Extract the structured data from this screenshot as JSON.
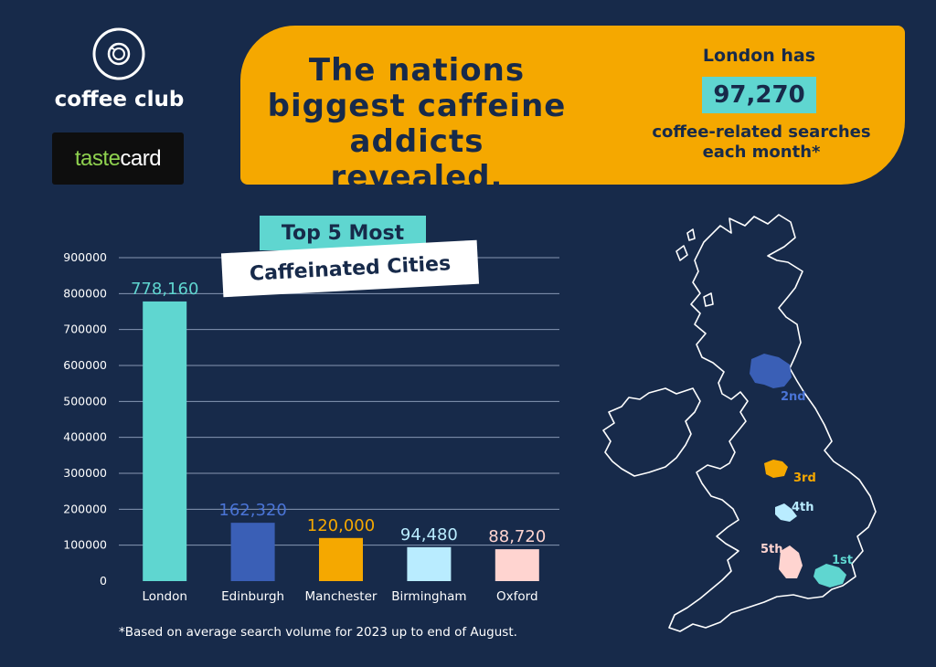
{
  "brand": {
    "name": "coffee club",
    "partner_taste": "taste",
    "partner_card": "card"
  },
  "banner": {
    "title": "The nations biggest caffeine addicts revealed.",
    "stat_lead": "London has",
    "stat_value": "97,270",
    "stat_tail": "coffee-related searches each month*"
  },
  "chart_title": {
    "line1": "Top 5 Most",
    "line2": "Caffeinated Cities"
  },
  "chart_data": {
    "type": "bar",
    "title": "Top 5 Most Caffeinated Cities",
    "categories": [
      "London",
      "Edinburgh",
      "Manchester",
      "Birmingham",
      "Oxford"
    ],
    "values": [
      778160,
      162320,
      120000,
      94480,
      88720
    ],
    "value_labels": [
      "778,160",
      "162,320",
      "120,000",
      "94,480",
      "88,720"
    ],
    "bar_colors": [
      "#5fd6d0",
      "#3a5fb6",
      "#f5a800",
      "#b9ecff",
      "#ffd4d0"
    ],
    "label_colors": [
      "#5fd6d0",
      "#4a74d6",
      "#f5a800",
      "#b9ecff",
      "#ffd4d0"
    ],
    "yticks": [
      "0",
      "100000",
      "200000",
      "300000",
      "400000",
      "500000",
      "600000",
      "700000",
      "800000",
      "900000"
    ],
    "ylim": [
      0,
      900000
    ],
    "grid": true
  },
  "footnote": "*Based on average search volume for 2023 up to end of August.",
  "map": {
    "markers": [
      {
        "label": "1st",
        "color": "#5fd6d0"
      },
      {
        "label": "2nd",
        "color": "#3a5fb6"
      },
      {
        "label": "3rd",
        "color": "#f5a800"
      },
      {
        "label": "4th",
        "color": "#b9ecff"
      },
      {
        "label": "5th",
        "color": "#ffd4d0"
      }
    ]
  }
}
